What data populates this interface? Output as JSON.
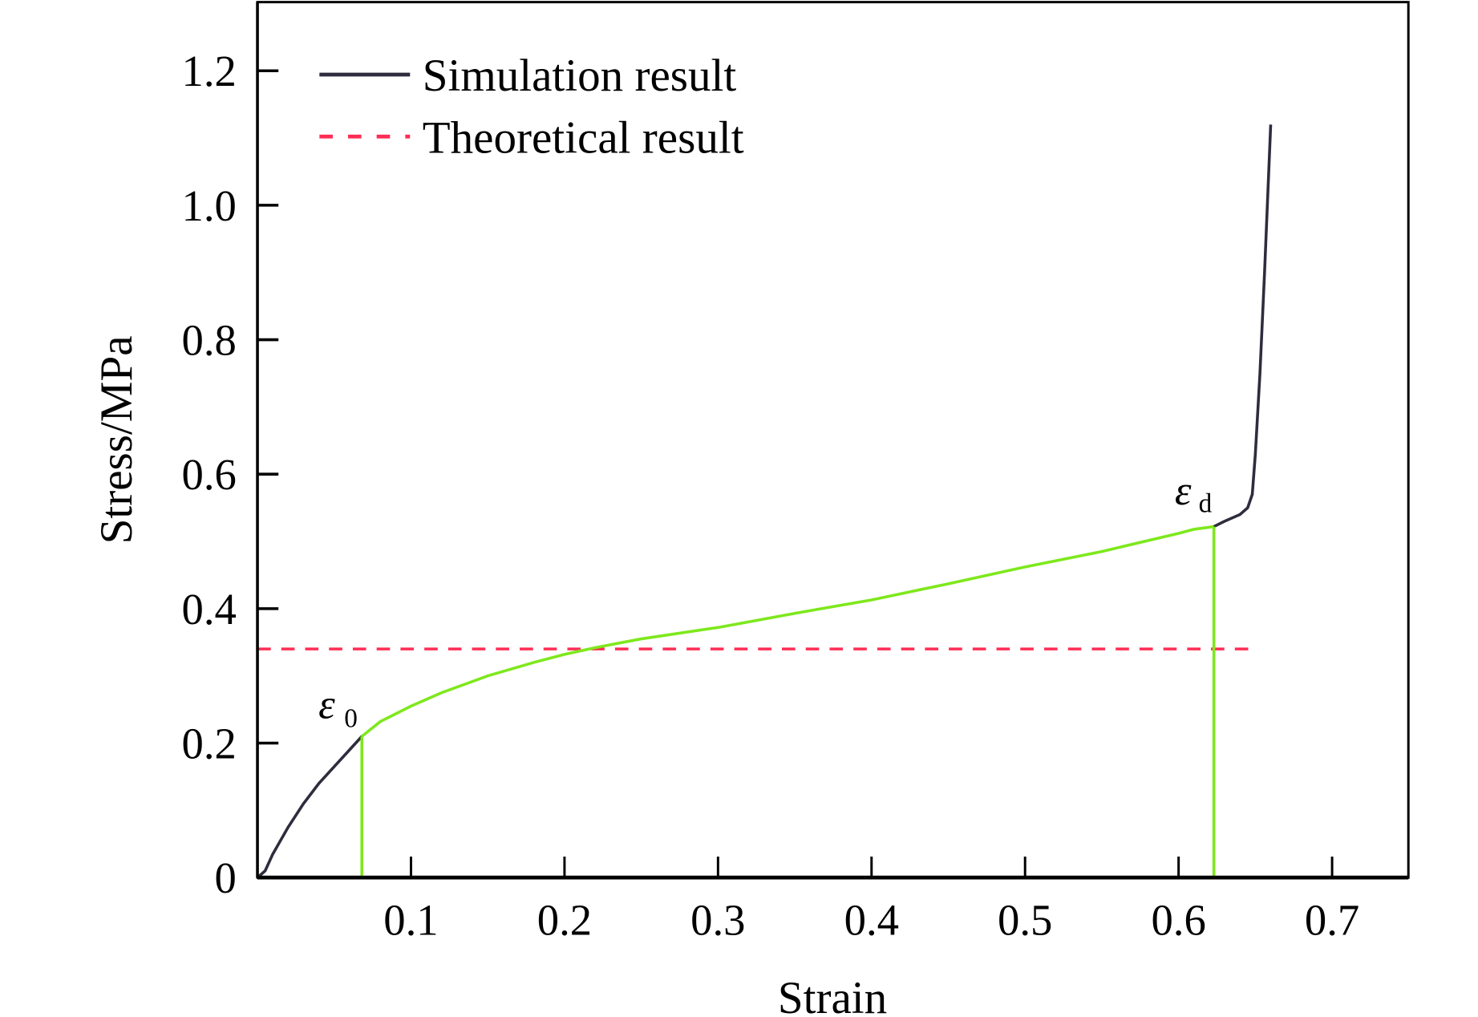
{
  "chart_data": {
    "type": "line",
    "title": "",
    "xlabel": "Strain",
    "ylabel": "Stress/MPa",
    "xlim": [
      0,
      0.75
    ],
    "ylim": [
      0,
      1.3
    ],
    "grid": false,
    "legend_position": "top-left",
    "x_ticks": [
      0.1,
      0.2,
      0.3,
      0.4,
      0.5,
      0.6,
      0.7
    ],
    "x_tick_labels": [
      "0.1",
      "0.2",
      "0.3",
      "0.4",
      "0.5",
      "0.6",
      "0.7"
    ],
    "y_ticks": [
      0,
      0.2,
      0.4,
      0.6,
      0.8,
      1.0,
      1.2
    ],
    "y_tick_labels": [
      "0",
      "0.2",
      "0.4",
      "0.6",
      "0.8",
      "1.0",
      "1.2"
    ],
    "series": [
      {
        "name": "Simulation result",
        "color": "#2f2c3e",
        "highlight_color": "#7ee81c",
        "highlight_range": [
          0.068,
          0.623
        ],
        "style": "solid",
        "x": [
          0,
          0.005,
          0.01,
          0.02,
          0.03,
          0.04,
          0.05,
          0.06,
          0.068,
          0.08,
          0.1,
          0.12,
          0.15,
          0.18,
          0.2,
          0.22,
          0.25,
          0.3,
          0.35,
          0.4,
          0.45,
          0.5,
          0.55,
          0.6,
          0.61,
          0.623,
          0.63,
          0.64,
          0.645,
          0.648,
          0.65,
          0.653,
          0.656,
          0.66
        ],
        "y": [
          0,
          0.01,
          0.035,
          0.075,
          0.11,
          0.14,
          0.165,
          0.19,
          0.21,
          0.232,
          0.255,
          0.275,
          0.3,
          0.32,
          0.332,
          0.342,
          0.355,
          0.372,
          0.393,
          0.413,
          0.437,
          0.462,
          0.485,
          0.512,
          0.518,
          0.522,
          0.53,
          0.54,
          0.55,
          0.57,
          0.63,
          0.75,
          0.9,
          1.12
        ]
      },
      {
        "name": "Theoretical result",
        "color": "#ff2d55",
        "style": "dashed",
        "x": [
          0,
          0.646
        ],
        "y": [
          0.34,
          0.34
        ]
      }
    ],
    "markers": [
      {
        "label": "ε",
        "subscript": "0",
        "x": 0.068,
        "y": 0.21,
        "color": "#7ee81c"
      },
      {
        "label": "ε",
        "subscript": "d",
        "x": 0.623,
        "y": 0.522,
        "color": "#7ee81c"
      }
    ]
  }
}
